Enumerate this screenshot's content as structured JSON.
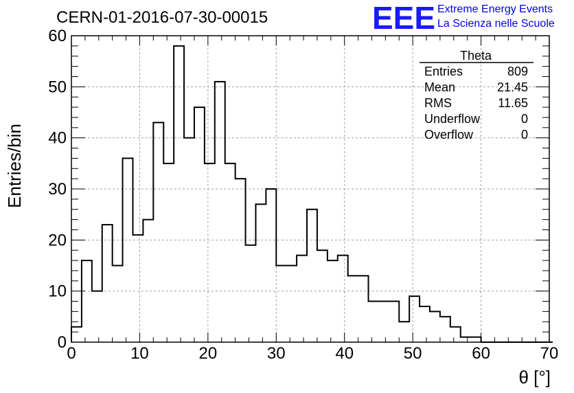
{
  "header": {
    "run_title": "CERN-01-2016-07-30-00015",
    "logo_text": "EEE",
    "logo_line1": "Extreme Energy Events",
    "logo_line2": "La Scienza nelle Scuole"
  },
  "colors": {
    "logo": "#1a1aff",
    "histogram": "#000000",
    "grid": "#a0a0a0"
  },
  "stats_box": {
    "title": "Theta",
    "rows": [
      {
        "label": "Entries",
        "value": "809"
      },
      {
        "label": "Mean",
        "value": "21.45"
      },
      {
        "label": "RMS",
        "value": "11.65"
      },
      {
        "label": "Underflow",
        "value": "0"
      },
      {
        "label": "Overflow",
        "value": "0"
      }
    ]
  },
  "chart_data": {
    "type": "bar",
    "style": "step-histogram",
    "xlabel": "θ [°]",
    "ylabel": "Entries/bin",
    "xlim": [
      0,
      70
    ],
    "ylim": [
      0,
      60
    ],
    "xticks": [
      0,
      10,
      20,
      30,
      40,
      50,
      60,
      70
    ],
    "yticks": [
      0,
      10,
      20,
      30,
      40,
      50,
      60
    ],
    "grid": true,
    "bin_width": 1.5,
    "bin_edges_start": 0,
    "values": [
      3,
      16,
      10,
      23,
      15,
      36,
      21,
      24,
      43,
      35,
      58,
      40,
      46,
      35,
      51,
      35,
      32,
      19,
      27,
      30,
      15,
      15,
      17,
      26,
      18,
      16,
      17,
      13,
      13,
      8,
      8,
      8,
      4,
      9,
      7,
      6,
      5,
      3,
      1,
      1,
      0,
      0,
      0,
      0,
      0,
      0,
      0
    ]
  }
}
